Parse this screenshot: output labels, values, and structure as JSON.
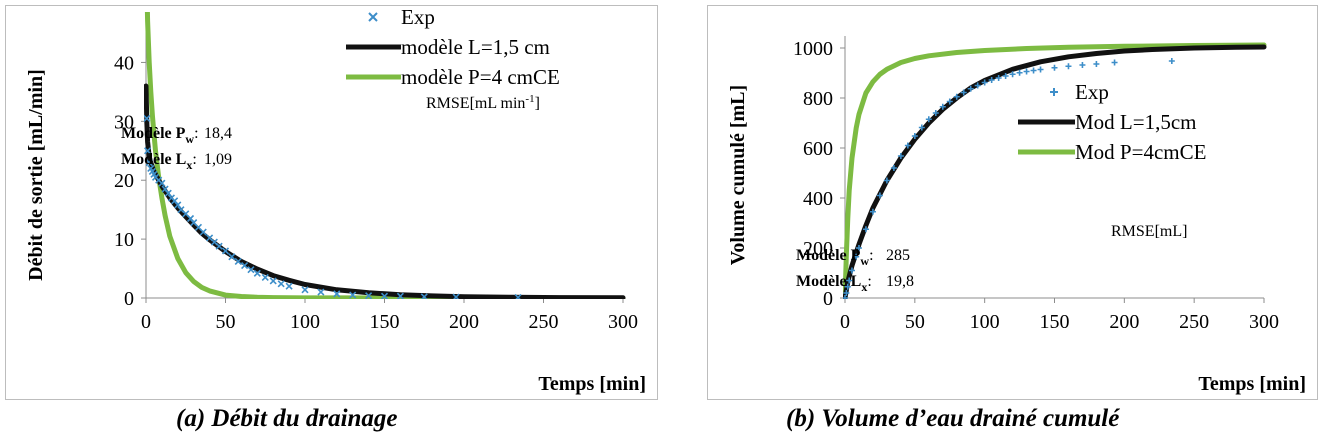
{
  "chart_data": [
    {
      "id": "a",
      "type": "line",
      "caption": "(a) Débit du drainage",
      "xlabel": "Temps [min]",
      "ylabel": "Débit de sortie [mL/min]",
      "xlim": [
        0,
        300
      ],
      "ylim": [
        0,
        45
      ],
      "xticks": [
        "0",
        "50",
        "100",
        "150",
        "200",
        "250",
        "300"
      ],
      "yticks": [
        "0",
        "10",
        "20",
        "30",
        "40"
      ],
      "legend_position": "top-right",
      "grid": false,
      "series": [
        {
          "name": "Exp",
          "kind": "scatter",
          "marker": "x",
          "color": "#3d8ec9",
          "x": [
            0.5,
            1,
            2,
            3,
            4,
            5,
            6,
            8,
            10,
            12,
            14,
            16,
            18,
            20,
            22,
            25,
            28,
            30,
            33,
            36,
            40,
            43,
            46,
            50,
            54,
            58,
            62,
            66,
            70,
            75,
            80,
            85,
            90,
            100,
            110,
            120,
            130,
            140,
            150,
            160,
            175,
            195,
            234
          ],
          "y": [
            30.5,
            25,
            23,
            22,
            21.5,
            21,
            20.5,
            20,
            19.5,
            18.5,
            17.8,
            17,
            16.5,
            15.8,
            15,
            14.3,
            13.5,
            12.8,
            12,
            11.2,
            10.2,
            9.5,
            8.8,
            8,
            7,
            6.2,
            5.5,
            4.8,
            4.2,
            3.5,
            2.9,
            2.4,
            2,
            1.4,
            1.0,
            0.7,
            0.5,
            0.4,
            0.3,
            0.3,
            0.2,
            0.15,
            0.1
          ]
        },
        {
          "name": "modèle L=1,5 cm",
          "kind": "line",
          "color": "#111111",
          "x": [
            0,
            0.5,
            1,
            2,
            3,
            5,
            8,
            10,
            15,
            20,
            25,
            30,
            35,
            40,
            50,
            60,
            70,
            80,
            90,
            100,
            120,
            140,
            160,
            180,
            200,
            230,
            260,
            300
          ],
          "y": [
            36,
            30,
            26.5,
            24,
            23,
            21.5,
            20,
            19,
            17,
            15.3,
            13.8,
            12.4,
            11,
            9.9,
            7.9,
            6.2,
            4.9,
            3.8,
            3.0,
            2.3,
            1.4,
            0.9,
            0.55,
            0.35,
            0.22,
            0.12,
            0.07,
            0.03
          ]
        },
        {
          "name": "modèle P=4 cmCE",
          "kind": "line",
          "color": "#7dbb42",
          "x": [
            0,
            1,
            2,
            3,
            4,
            5,
            6,
            8,
            10,
            12,
            15,
            20,
            25,
            30,
            35,
            40,
            50,
            60,
            70,
            80,
            100,
            130,
            160,
            200,
            300
          ],
          "y": [
            60,
            47,
            40,
            35,
            31,
            28,
            25,
            20.5,
            17,
            14,
            10.5,
            6.7,
            4.3,
            2.8,
            1.8,
            1.2,
            0.5,
            0.25,
            0.12,
            0.06,
            0.02,
            0.01,
            0,
            0,
            0
          ]
        }
      ],
      "annotation": {
        "header": "RMSE[mL min-1]",
        "header_base": "RMSE[mL min",
        "header_sup": "-1",
        "header_end": "]",
        "rows": [
          {
            "label": "Modèle P",
            "sub": "w",
            "suffix": ":",
            "value": "18,4"
          },
          {
            "label": "Modèle L",
            "sub": "x",
            "suffix": ":",
            "value": "1,09"
          }
        ]
      }
    },
    {
      "id": "b",
      "type": "line",
      "caption": "(b) Volume d’eau drainé cumulé",
      "xlabel": "Temps [min]",
      "ylabel": "Volume cumulé [mL]",
      "xlim": [
        0,
        300
      ],
      "ylim": [
        0,
        1000
      ],
      "xticks": [
        "0",
        "50",
        "100",
        "150",
        "200",
        "250",
        "300"
      ],
      "yticks": [
        "0",
        "200",
        "400",
        "600",
        "800",
        "1000"
      ],
      "legend_position": "center-right",
      "grid": false,
      "series": [
        {
          "name": "Exp",
          "kind": "scatter",
          "marker": "+",
          "color": "#3d8ec9",
          "x": [
            0,
            1,
            2,
            3,
            5,
            8,
            10,
            15,
            20,
            25,
            30,
            35,
            40,
            45,
            50,
            55,
            60,
            65,
            70,
            75,
            80,
            85,
            90,
            95,
            100,
            105,
            110,
            115,
            120,
            125,
            130,
            135,
            140,
            150,
            160,
            170,
            180,
            193,
            234
          ],
          "y": [
            0,
            20,
            45,
            70,
            110,
            165,
            200,
            275,
            345,
            410,
            470,
            520,
            568,
            610,
            648,
            682,
            715,
            740,
            765,
            786,
            805,
            822,
            837,
            850,
            862,
            872,
            880,
            888,
            895,
            901,
            906,
            910,
            914,
            921,
            927,
            932,
            936,
            942,
            948
          ]
        },
        {
          "name": "Mod L=1,5cm",
          "kind": "line",
          "color": "#111111",
          "x": [
            0,
            2,
            5,
            10,
            15,
            20,
            30,
            40,
            50,
            60,
            70,
            80,
            90,
            100,
            120,
            140,
            160,
            180,
            200,
            220,
            250,
            280,
            300
          ],
          "y": [
            0,
            65,
            130,
            215,
            290,
            360,
            470,
            560,
            635,
            700,
            755,
            800,
            840,
            870,
            915,
            945,
            965,
            978,
            988,
            994,
            1000,
            1003,
            1004
          ]
        },
        {
          "name": "Mod P=4cmCE",
          "kind": "line",
          "color": "#7dbb42",
          "x": [
            0,
            1,
            2,
            3,
            5,
            8,
            10,
            15,
            20,
            25,
            30,
            40,
            50,
            60,
            80,
            100,
            130,
            160,
            200,
            250,
            300
          ],
          "y": [
            0,
            180,
            320,
            430,
            560,
            680,
            735,
            820,
            865,
            895,
            915,
            942,
            958,
            969,
            982,
            990,
            998,
            1003,
            1007,
            1010,
            1012
          ]
        }
      ],
      "annotation": {
        "header": "RMSE[mL]",
        "rows": [
          {
            "label": "Modèle P",
            "sub": "w",
            "suffix": ":",
            "value": "285"
          },
          {
            "label": "Modèle L",
            "sub": "x",
            "suffix": ":",
            "value": "19,8"
          }
        ]
      }
    }
  ]
}
